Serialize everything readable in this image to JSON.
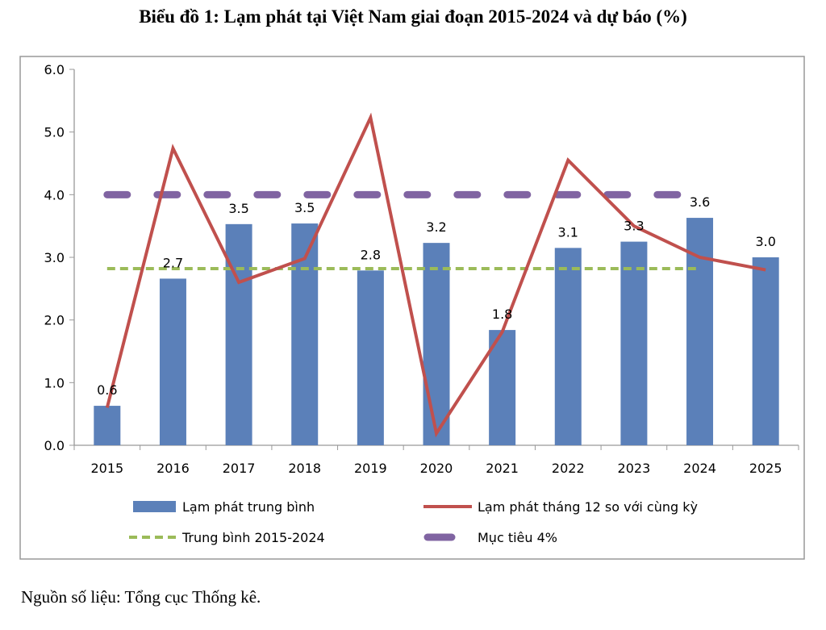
{
  "title": "Biểu đồ 1: Lạm phát tại Việt Nam giai đoạn 2015-2024 và dự báo (%)",
  "source": "Nguồn số liệu: Tổng cục Thống kê.",
  "chart_data": {
    "type": "bar",
    "title": "Biểu đồ 1: Lạm phát tại Việt Nam giai đoạn 2015-2024 và dự báo (%)",
    "categories": [
      "2015",
      "2016",
      "2017",
      "2018",
      "2019",
      "2020",
      "2021",
      "2022",
      "2023",
      "2024",
      "2025"
    ],
    "ylim": [
      0,
      6
    ],
    "yticks": [
      "0.0",
      "1.0",
      "2.0",
      "3.0",
      "4.0",
      "5.0",
      "6.0"
    ],
    "grid": false,
    "legend_position": "bottom",
    "series": [
      {
        "name": "Lạm phát trung bình",
        "type": "bar",
        "color": "#5b80b9",
        "values": [
          0.63,
          2.66,
          3.53,
          3.54,
          2.79,
          3.23,
          1.84,
          3.15,
          3.25,
          3.63,
          3.0
        ],
        "labels": [
          "0.6",
          "2.7",
          "3.5",
          "3.5",
          "2.8",
          "3.2",
          "1.8",
          "3.1",
          "3.3",
          "3.6",
          "3.0"
        ]
      },
      {
        "name": "Lạm phát tháng 12 so với cùng kỳ",
        "type": "line",
        "color": "#c0504d",
        "values": [
          0.6,
          4.74,
          2.6,
          2.98,
          5.23,
          0.19,
          1.81,
          4.55,
          3.5,
          3.0,
          2.8
        ]
      },
      {
        "name": "Trung bình 2015-2024",
        "type": "line",
        "style": "dashed",
        "color": "#9bbb59",
        "values": [
          2.82,
          2.82,
          2.82,
          2.82,
          2.82,
          2.82,
          2.82,
          2.82,
          2.82,
          2.82,
          null
        ]
      },
      {
        "name": "Mục tiêu 4%",
        "type": "line",
        "style": "dashed",
        "color": "#8064a2",
        "values": [
          4,
          4,
          4,
          4,
          4,
          4,
          4,
          4,
          4,
          4,
          null
        ]
      }
    ]
  }
}
